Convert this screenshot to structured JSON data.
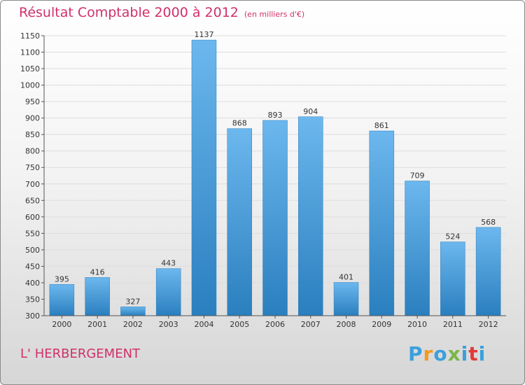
{
  "chart_data": {
    "type": "bar",
    "title": "Résultat Comptable 2000 à 2012",
    "subtitle": "(en milliers d'€)",
    "categories": [
      "2000",
      "2001",
      "2002",
      "2003",
      "2004",
      "2005",
      "2006",
      "2007",
      "2008",
      "2009",
      "2010",
      "2011",
      "2012"
    ],
    "values": [
      395,
      416,
      327,
      443,
      1137,
      868,
      893,
      904,
      401,
      861,
      709,
      524,
      568
    ],
    "ylim": [
      300,
      1150
    ],
    "yticks": [
      300,
      350,
      400,
      450,
      500,
      550,
      600,
      650,
      700,
      750,
      800,
      850,
      900,
      950,
      1000,
      1050,
      1100,
      1150
    ],
    "grid": true,
    "xlabel": "",
    "ylabel": ""
  },
  "commune": "L' HERBERGEMENT",
  "logo": {
    "text": "Proxiti",
    "letters": [
      "P",
      "r",
      "o",
      "x",
      "i",
      "t",
      "i"
    ],
    "colors": [
      "#3aa0dd",
      "#f39a1e",
      "#3aa0dd",
      "#7ab648",
      "#3aa0dd",
      "#e23a3a",
      "#3aa0dd"
    ]
  },
  "colors": {
    "title": "#d0306a",
    "bar_top": "#6cb7ee",
    "bar_bottom": "#2a7fbe",
    "grid": "#dddddd",
    "axis": "#555555"
  }
}
